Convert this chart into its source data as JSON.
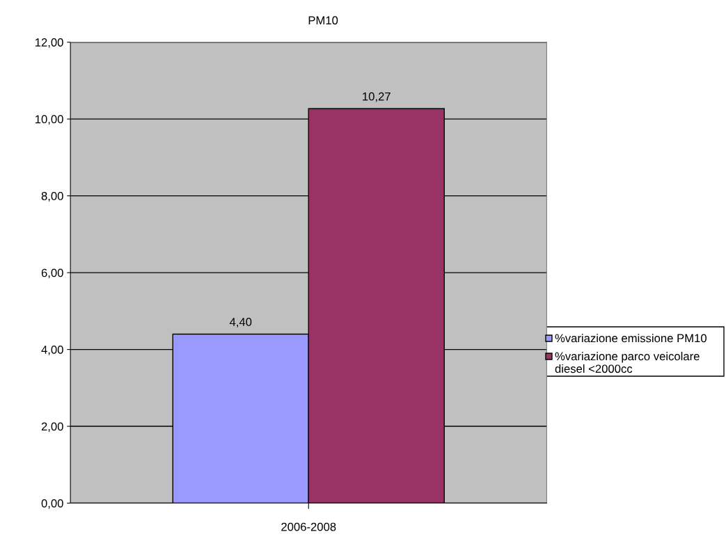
{
  "chart_data": {
    "type": "bar",
    "title": "PM10",
    "categories": [
      "2006-2008"
    ],
    "series": [
      {
        "name": "%variazione emissione PM10",
        "color": "#9999ff",
        "values": [
          4.4
        ],
        "value_labels": [
          "4,40"
        ]
      },
      {
        "name": "%variazione parco veicolare diesel <2000cc",
        "color": "#993366",
        "values": [
          10.27
        ],
        "value_labels": [
          "10,27"
        ]
      }
    ],
    "ylim": [
      0,
      12
    ],
    "yticks": [
      {
        "value": 0,
        "label": "0,00"
      },
      {
        "value": 2,
        "label": "2,00"
      },
      {
        "value": 4,
        "label": "4,00"
      },
      {
        "value": 6,
        "label": "6,00"
      },
      {
        "value": 8,
        "label": "8,00"
      },
      {
        "value": 10,
        "label": "10,00"
      },
      {
        "value": 12,
        "label": "12,00"
      }
    ],
    "grid": "y",
    "legend": "right"
  }
}
